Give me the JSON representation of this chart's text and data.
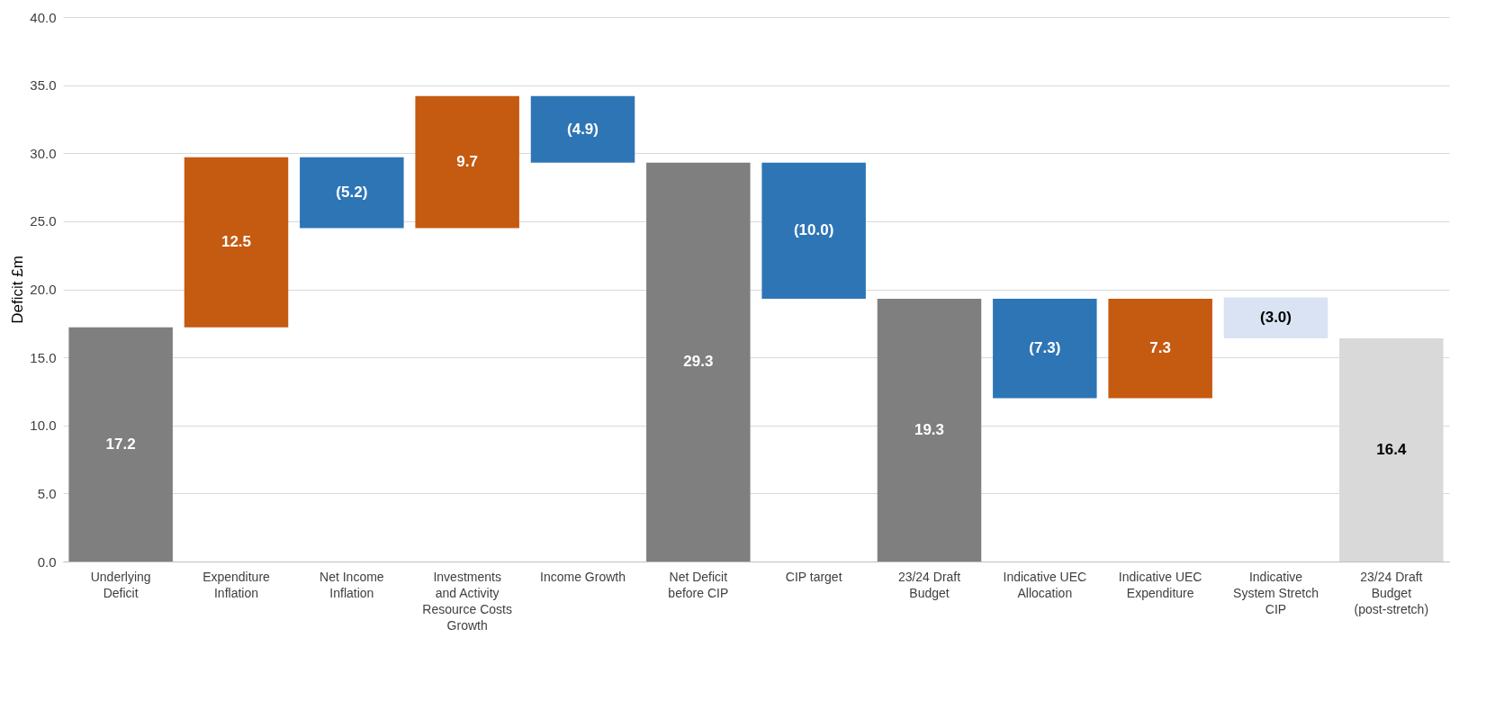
{
  "chart_data": {
    "type": "bar",
    "ylabel": "Deficit £m",
    "categories": [
      "Underlying Deficit",
      "Expenditure Inflation",
      "Net Income Inflation",
      "Investments and Activity Resource Costs Growth",
      "Income Growth",
      "Net Deficit before CIP",
      "CIP target",
      "23/24 Draft Budget",
      "Indicative UEC Allocation",
      "Indicative UEC Expenditure",
      "Indicative System Stretch CIP",
      "23/24 Draft Budget (post-stretch)"
    ],
    "values": [
      17.2,
      12.5,
      -5.2,
      9.7,
      -4.9,
      29.3,
      -10.0,
      19.3,
      -7.3,
      7.3,
      -3.0,
      16.4
    ],
    "base": [
      0,
      17.2,
      29.7,
      24.5,
      34.2,
      0,
      29.3,
      0,
      19.3,
      12.0,
      19.4,
      0
    ],
    "colors": [
      "#7f7f7f",
      "#c55a11",
      "#2e75b6",
      "#c55a11",
      "#2e75b6",
      "#7f7f7f",
      "#2e75b6",
      "#7f7f7f",
      "#2e75b6",
      "#c55a11",
      "#dae3f3",
      "#d9d9d9"
    ],
    "value_labels": [
      "17.2",
      "12.5",
      "(5.2)",
      "9.7",
      "(4.9)",
      "29.3",
      "(10.0)",
      "19.3",
      "(7.3)",
      "7.3",
      "(3.0)",
      "16.4"
    ],
    "ylim": [
      0,
      40
    ],
    "yticks": [
      {
        "value": 0,
        "label": "0.0"
      },
      {
        "value": 5,
        "label": "5.0"
      },
      {
        "value": 10,
        "label": "10.0"
      },
      {
        "value": 15,
        "label": "15.0"
      },
      {
        "value": 20,
        "label": "20.0"
      },
      {
        "value": 25,
        "label": "25.0"
      },
      {
        "value": 30,
        "label": "30.0"
      },
      {
        "value": 35,
        "label": "35.0"
      },
      {
        "value": 40,
        "label": "40.0"
      }
    ],
    "grid": "y"
  }
}
